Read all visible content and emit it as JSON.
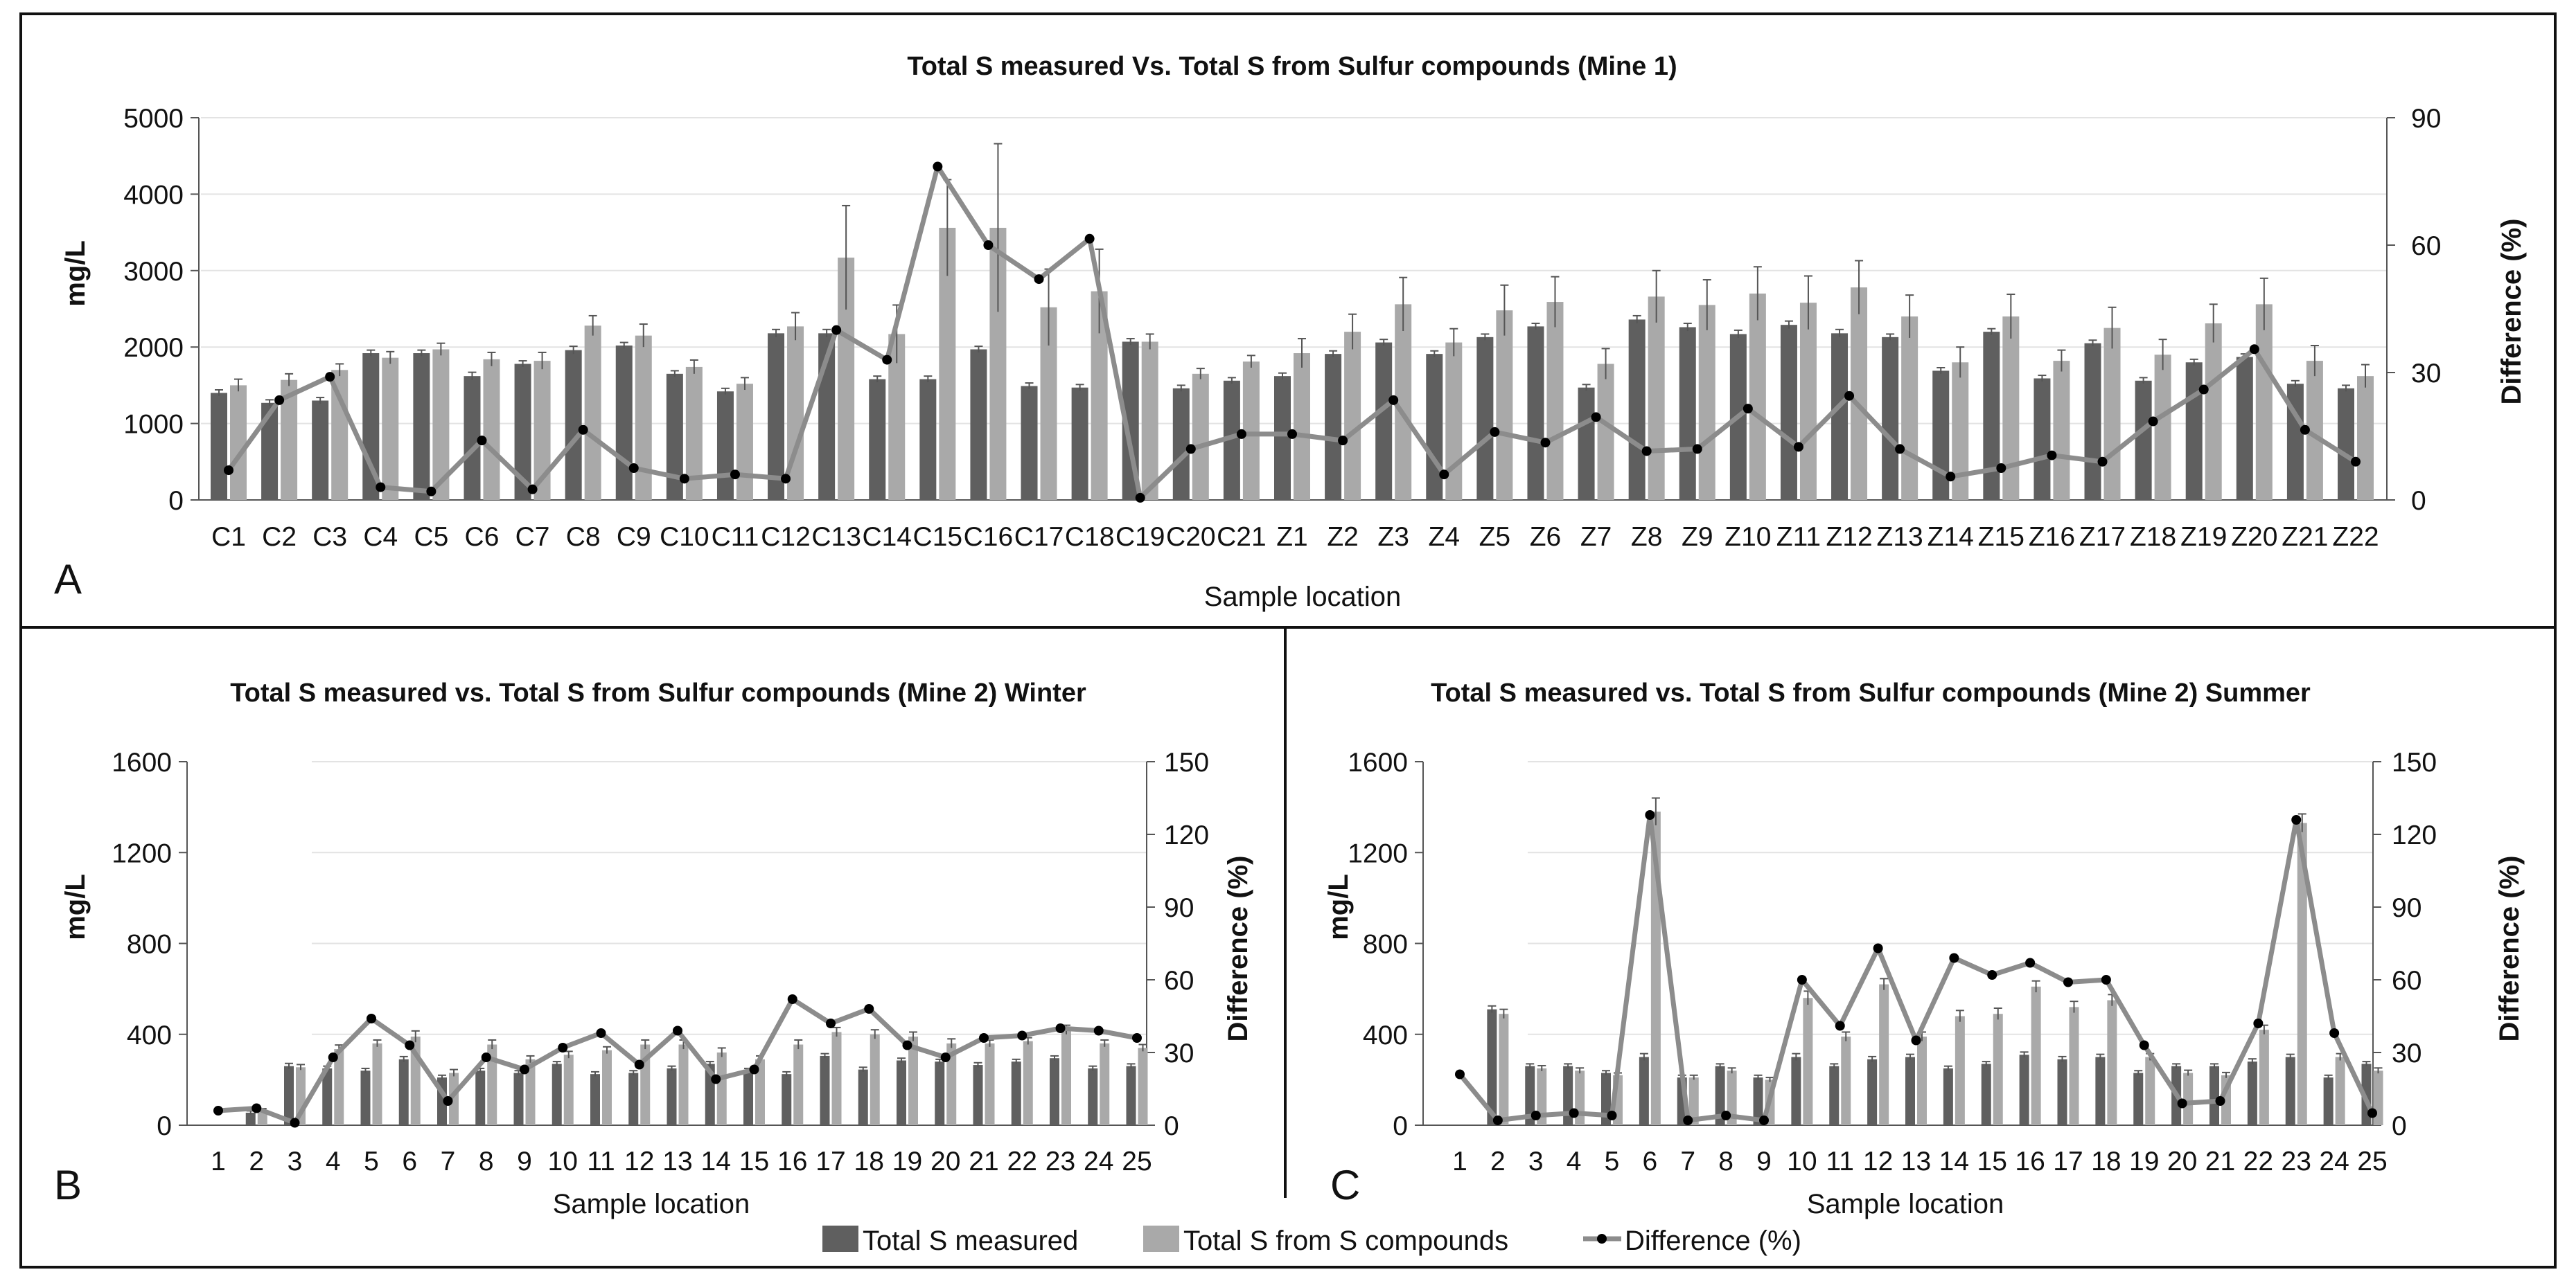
{
  "legend": {
    "measured": "Total S measured",
    "compounds": "Total S from S compounds",
    "difference": "Difference (%)"
  },
  "colors": {
    "measured": "#5f5f5f",
    "compounds": "#a9a9a9",
    "line": "#8c8c8c",
    "marker": "#000000"
  },
  "chart_data": [
    {
      "panel": "A",
      "type": "bar",
      "title": "Total S measured  Vs.  Total S from Sulfur compounds (Mine 1)",
      "xlabel": "Sample location",
      "ylabel": "mg/L",
      "y2label": "Difference (%)",
      "ylim": [
        0,
        5000
      ],
      "yticks": [
        0,
        1000,
        2000,
        3000,
        4000,
        5000
      ],
      "y2lim": [
        0,
        90
      ],
      "y2ticks": [
        0,
        30,
        60,
        90
      ],
      "categories": [
        "C1",
        "C2",
        "C3",
        "C4",
        "C5",
        "C6",
        "C7",
        "C8",
        "C9",
        "C10",
        "C11",
        "C12",
        "C13",
        "C14",
        "C15",
        "C16",
        "C17",
        "C18",
        "C19",
        "C20",
        "C21",
        "Z1",
        "Z2",
        "Z3",
        "Z4",
        "Z5",
        "Z6",
        "Z7",
        "Z8",
        "Z9",
        "Z10",
        "Z11",
        "Z12",
        "Z13",
        "Z14",
        "Z15",
        "Z16",
        "Z17",
        "Z18",
        "Z19",
        "Z20",
        "Z21",
        "Z22"
      ],
      "series": [
        {
          "name": "Total S measured",
          "values": [
            1400,
            1270,
            1300,
            1920,
            1920,
            1620,
            1780,
            1960,
            2020,
            1650,
            1420,
            2180,
            2180,
            1580,
            1580,
            1970,
            1490,
            1470,
            2070,
            1460,
            1560,
            1620,
            1910,
            2060,
            1910,
            2130,
            2270,
            1470,
            2360,
            2260,
            2170,
            2290,
            2180,
            2130,
            1690,
            2200,
            1590,
            2050,
            1560,
            1800,
            1870,
            1520,
            1460
          ],
          "errors": [
            40,
            40,
            40,
            40,
            40,
            50,
            40,
            50,
            40,
            40,
            40,
            50,
            50,
            40,
            40,
            40,
            40,
            40,
            40,
            40,
            40,
            40,
            40,
            40,
            40,
            40,
            40,
            40,
            50,
            50,
            50,
            50,
            50,
            40,
            40,
            40,
            40,
            40,
            40,
            40,
            40,
            40,
            40
          ]
        },
        {
          "name": "Total S from S compounds",
          "values": [
            1500,
            1570,
            1700,
            1860,
            1970,
            1840,
            1820,
            2280,
            2150,
            1740,
            1520,
            2270,
            3170,
            2170,
            3560,
            3560,
            2520,
            2730,
            2070,
            1650,
            1810,
            1920,
            2200,
            2560,
            2060,
            2480,
            2590,
            1780,
            2660,
            2550,
            2700,
            2580,
            2780,
            2400,
            1800,
            2400,
            1820,
            2250,
            1900,
            2310,
            2560,
            1820,
            1620
          ],
          "errors": [
            80,
            80,
            80,
            80,
            80,
            90,
            110,
            130,
            150,
            90,
            80,
            180,
            680,
            380,
            630,
            1100,
            500,
            550,
            100,
            70,
            80,
            190,
            230,
            350,
            180,
            330,
            330,
            200,
            340,
            330,
            350,
            350,
            350,
            280,
            200,
            290,
            140,
            270,
            200,
            250,
            340,
            200,
            150
          ]
        },
        {
          "name": "Difference (%)",
          "axis": "secondary",
          "values": [
            7,
            23.5,
            29,
            3,
            2,
            14,
            2.5,
            16.5,
            7.5,
            5,
            6,
            5,
            40,
            33,
            78.5,
            60,
            52,
            61.5,
            0.5,
            12,
            15.5,
            15.5,
            14,
            23.5,
            6,
            16,
            13.5,
            19.5,
            11.5,
            12,
            21.5,
            12.5,
            24.5,
            12,
            5.5,
            7.5,
            10.5,
            9,
            18.5,
            26,
            35.5,
            16.5,
            9
          ]
        }
      ]
    },
    {
      "panel": "B",
      "type": "bar",
      "title": "Total S measured  vs.  Total S from Sulfur compounds (Mine 2) Winter",
      "xlabel": "Sample location",
      "ylabel": "mg/L",
      "y2label": "Difference (%)",
      "ylim": [
        0,
        1600
      ],
      "yticks": [
        0,
        400,
        800,
        1200,
        1600
      ],
      "y2lim": [
        0,
        150
      ],
      "y2ticks": [
        0,
        30,
        60,
        90,
        120,
        150
      ],
      "categories": [
        "1",
        "2",
        "3",
        "4",
        "5",
        "6",
        "7",
        "8",
        "9",
        "10",
        "11",
        "12",
        "13",
        "14",
        "15",
        "16",
        "17",
        "18",
        "19",
        "20",
        "21",
        "22",
        "23",
        "24",
        "25"
      ],
      "series": [
        {
          "name": "Total S measured",
          "values": [
            0,
            55,
            260,
            250,
            240,
            290,
            210,
            240,
            230,
            270,
            225,
            230,
            250,
            270,
            240,
            225,
            305,
            245,
            285,
            280,
            265,
            280,
            295,
            250,
            260
          ],
          "errors": [
            0,
            8,
            12,
            10,
            10,
            12,
            10,
            10,
            10,
            10,
            10,
            10,
            10,
            10,
            10,
            10,
            10,
            10,
            10,
            10,
            10,
            10,
            10,
            10,
            10
          ]
        },
        {
          "name": "Total S from S compounds",
          "values": [
            0,
            65,
            255,
            335,
            360,
            390,
            230,
            355,
            290,
            310,
            330,
            355,
            355,
            320,
            290,
            355,
            410,
            400,
            390,
            360,
            360,
            370,
            420,
            360,
            340
          ],
          "errors": [
            0,
            8,
            12,
            18,
            15,
            25,
            15,
            20,
            15,
            15,
            15,
            20,
            20,
            20,
            15,
            20,
            20,
            20,
            20,
            20,
            15,
            15,
            20,
            15,
            15
          ]
        },
        {
          "name": "Difference (%)",
          "axis": "secondary",
          "values": [
            6,
            7,
            1,
            28,
            44,
            33,
            10,
            28,
            23,
            32,
            38,
            25,
            39,
            19,
            23,
            52,
            42,
            48,
            33,
            28,
            36,
            37,
            40,
            39,
            36
          ]
        }
      ]
    },
    {
      "panel": "C",
      "type": "bar",
      "title": "Total S measured  vs.  Total S from Sulfur compounds (Mine 2) Summer",
      "xlabel": "Sample location",
      "ylabel": "mg/L",
      "y2label": "Difference (%)",
      "ylim": [
        0,
        1600
      ],
      "yticks": [
        0,
        400,
        800,
        1200,
        1600
      ],
      "y2lim": [
        0,
        150
      ],
      "y2ticks": [
        0,
        30,
        60,
        90,
        120,
        150
      ],
      "categories": [
        "1",
        "2",
        "3",
        "4",
        "5",
        "6",
        "7",
        "8",
        "9",
        "10",
        "11",
        "12",
        "13",
        "14",
        "15",
        "16",
        "17",
        "18",
        "19",
        "20",
        "21",
        "22",
        "23",
        "24",
        "25"
      ],
      "series": [
        {
          "name": "Total S measured",
          "values": [
            0,
            510,
            260,
            260,
            230,
            300,
            210,
            260,
            210,
            300,
            260,
            290,
            300,
            250,
            270,
            310,
            290,
            300,
            230,
            260,
            260,
            280,
            300,
            210,
            270
          ],
          "errors": [
            0,
            15,
            10,
            10,
            10,
            15,
            10,
            10,
            10,
            15,
            10,
            12,
            12,
            10,
            10,
            12,
            12,
            12,
            10,
            10,
            10,
            12,
            12,
            10,
            10
          ]
        },
        {
          "name": "Total S from S compounds",
          "values": [
            0,
            490,
            250,
            240,
            220,
            1380,
            210,
            240,
            200,
            560,
            390,
            620,
            390,
            480,
            490,
            610,
            520,
            550,
            300,
            230,
            220,
            420,
            1330,
            300,
            240
          ],
          "errors": [
            0,
            20,
            12,
            12,
            10,
            60,
            10,
            12,
            10,
            30,
            20,
            25,
            20,
            25,
            25,
            25,
            25,
            25,
            15,
            12,
            12,
            20,
            40,
            15,
            12
          ]
        },
        {
          "name": "Difference (%)",
          "axis": "secondary",
          "values": [
            21,
            2,
            4,
            5,
            4,
            128,
            2,
            4,
            2,
            60,
            41,
            73,
            35,
            69,
            62,
            67,
            59,
            60,
            33,
            9,
            10,
            42,
            126,
            38,
            5
          ]
        }
      ]
    }
  ]
}
